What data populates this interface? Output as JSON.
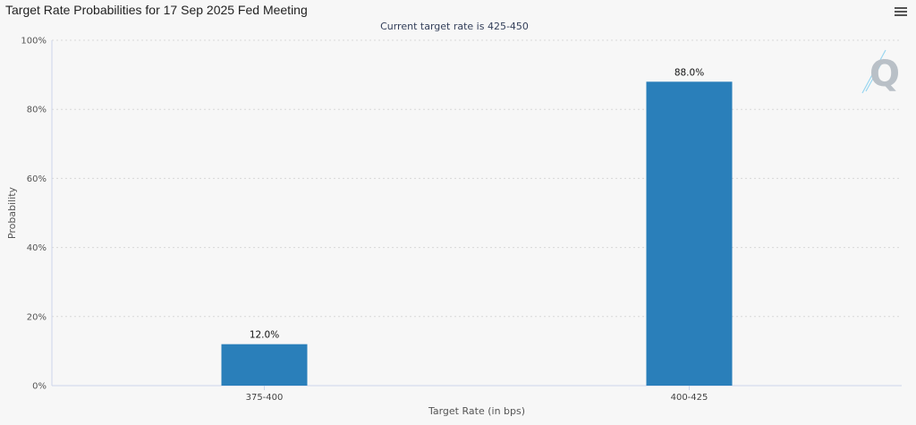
{
  "header": {
    "title": "Target Rate Probabilities for 17 Sep 2025 Fed Meeting",
    "menu_icon": "hamburger-menu-icon"
  },
  "chart_data": {
    "type": "bar",
    "subtitle": "Current target rate is 425-450",
    "xlabel": "Target Rate (in bps)",
    "ylabel": "Probability",
    "categories": [
      "375-400",
      "400-425"
    ],
    "values": [
      12.0,
      88.0
    ],
    "data_labels": [
      "12.0%",
      "88.0%"
    ],
    "ylim": [
      0,
      100
    ],
    "yticks": [
      0,
      20,
      40,
      60,
      80,
      100
    ],
    "ytick_labels": [
      "0%",
      "20%",
      "40%",
      "60%",
      "80%",
      "100%"
    ],
    "grid": true,
    "bar_color": "#2a7fba",
    "grid_color": "#d8d8d8"
  },
  "logo": {
    "icon": "q-logo-icon",
    "color": "#b9c0c7",
    "accent": "#8fd3f0"
  }
}
